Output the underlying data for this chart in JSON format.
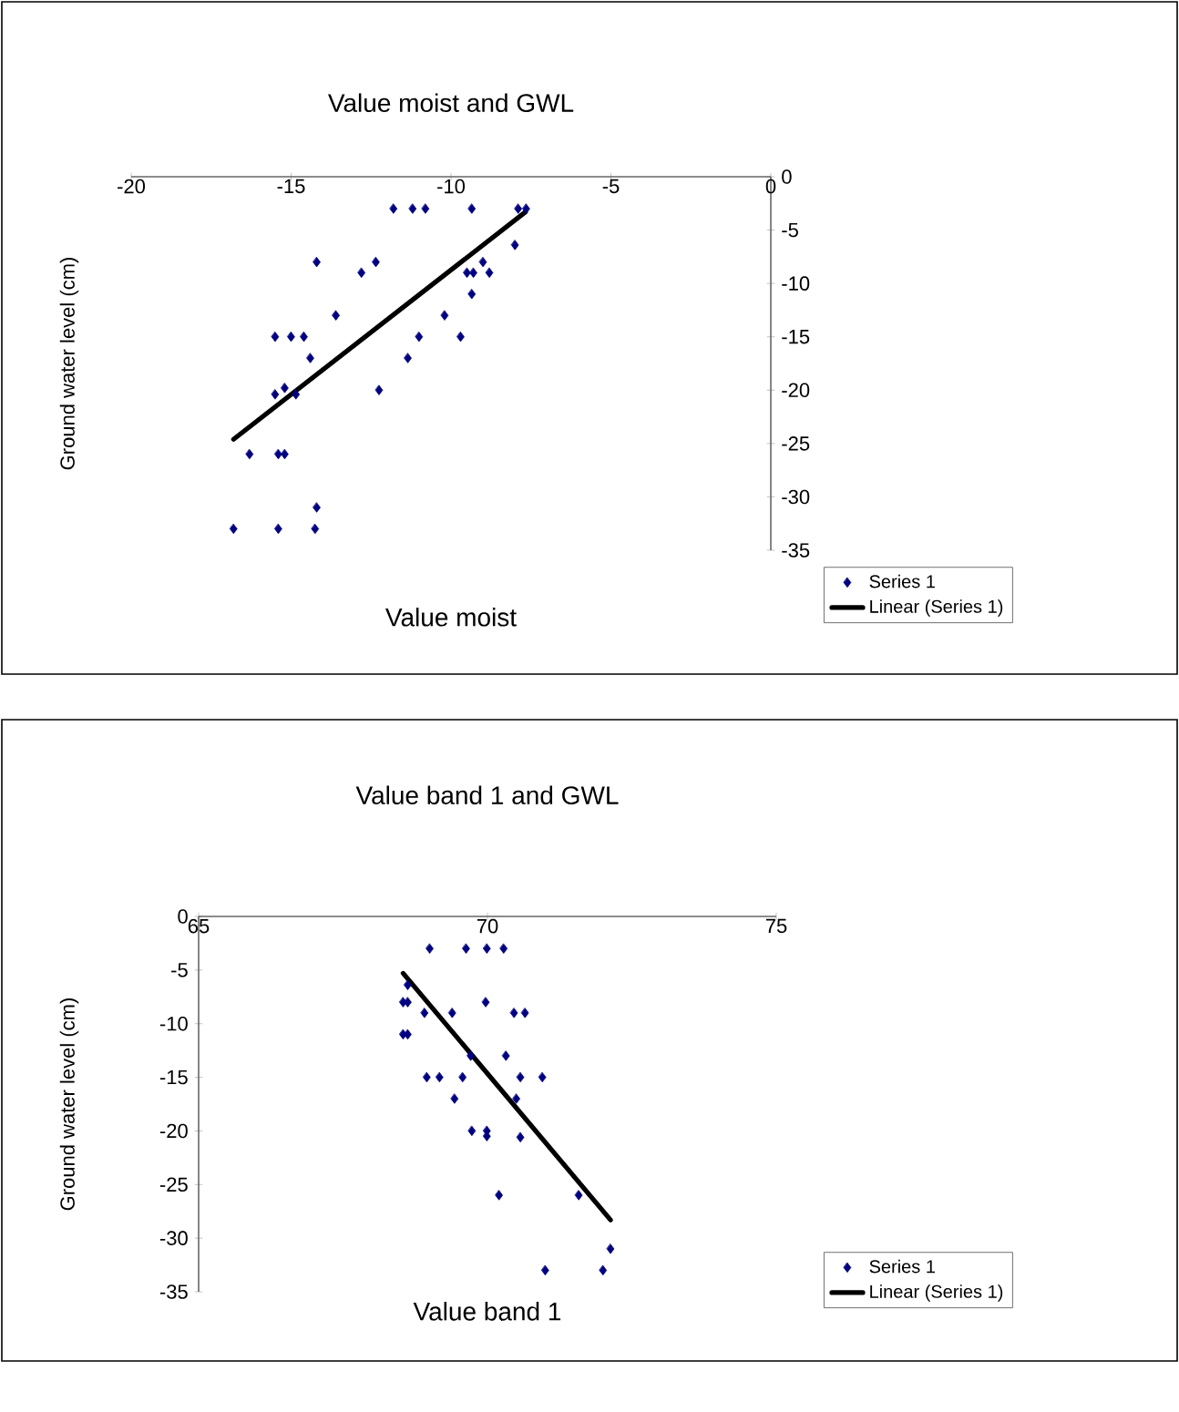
{
  "chart_data": [
    {
      "type": "scatter",
      "title": "Value moist and GWL",
      "xlabel": "Value moist",
      "ylabel": "Ground water level (cm)",
      "xlim": [
        -20,
        0
      ],
      "ylim": [
        -35,
        0
      ],
      "xticks": [
        -20,
        -15,
        -10,
        -5,
        0
      ],
      "yticks": [
        0,
        -5,
        -10,
        -15,
        -20,
        -25,
        -30,
        -35
      ],
      "legend": "bottom right",
      "marker": "diamond",
      "series": [
        {
          "name": "Series 1",
          "color": "#000080",
          "x": [
            -11.8,
            -11.2,
            -10.8,
            -9.35,
            -7.9,
            -7.65,
            -8.0,
            -14.2,
            -12.35,
            -12.8,
            -9.5,
            -9.3,
            -9.0,
            -8.8,
            -9.35,
            -13.6,
            -10.2,
            -15.5,
            -15.0,
            -14.6,
            -11.0,
            -9.7,
            -14.4,
            -11.35,
            -15.5,
            -15.2,
            -14.85,
            -12.25,
            -16.3,
            -15.4,
            -15.2,
            -14.2,
            -16.8,
            -15.4,
            -14.25
          ],
          "values": [
            -3,
            -3,
            -3,
            -3,
            -3,
            -3,
            -6.4,
            -8,
            -8,
            -9,
            -9,
            -9,
            -8,
            -9,
            -11,
            -13,
            -13,
            -15,
            -15,
            -15,
            -15,
            -15,
            -17,
            -17,
            -20.4,
            -19.8,
            -20.4,
            -20,
            -26,
            -26,
            -26,
            -31,
            -33,
            -33,
            -33
          ]
        },
        {
          "name": "Linear (Series 1)",
          "type": "line",
          "marker": "none",
          "color": "#000000",
          "x": [
            -16.8,
            -7.67
          ],
          "values": [
            -24.6,
            -3.3
          ]
        }
      ]
    },
    {
      "type": "scatter",
      "title": "Value band 1 and GWL",
      "xlabel": "Value band 1",
      "ylabel": "Ground water level (cm)",
      "xlim": [
        65,
        75
      ],
      "ylim": [
        -35,
        0
      ],
      "xticks": [
        65,
        70,
        75
      ],
      "yticks": [
        0,
        -5,
        -10,
        -15,
        -20,
        -25,
        -30,
        -35
      ],
      "legend": "bottom right",
      "marker": "diamond",
      "series": [
        {
          "name": "Series 1",
          "color": "#000080",
          "x": [
            69.0,
            69.63,
            69.99,
            70.28,
            68.62,
            68.54,
            68.62,
            68.91,
            69.39,
            69.97,
            70.46,
            70.65,
            68.54,
            68.62,
            69.71,
            70.32,
            68.95,
            69.17,
            69.57,
            70.57,
            70.95,
            69.43,
            70.5,
            69.73,
            69.99,
            69.99,
            70.57,
            70.2,
            71.58,
            71.0,
            72.0,
            72.13
          ],
          "values": [
            -3,
            -3,
            -3,
            -3,
            -6.4,
            -8,
            -8,
            -9,
            -9,
            -8,
            -9,
            -9,
            -11,
            -11,
            -13,
            -13,
            -15,
            -15,
            -15,
            -15,
            -15,
            -17,
            -17,
            -20,
            -20,
            -20.5,
            -20.6,
            -26,
            -26,
            -33,
            -33,
            -31
          ]
        },
        {
          "name": "Linear (Series 1)",
          "type": "line",
          "marker": "none",
          "color": "#000000",
          "x": [
            68.54,
            72.13
          ],
          "values": [
            -5.3,
            -28.3
          ]
        }
      ]
    }
  ]
}
